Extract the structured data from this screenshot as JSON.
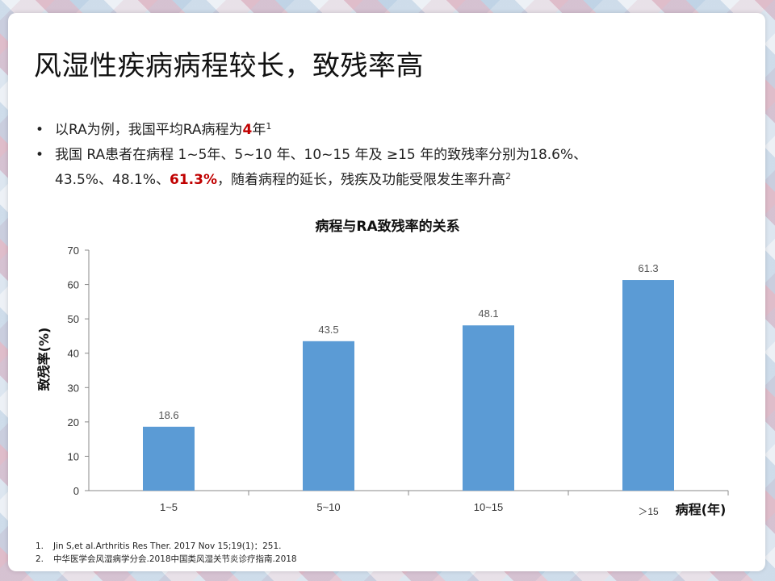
{
  "slide": {
    "title": "风湿性疾病病程较长，致残率高",
    "bullet1": {
      "pre": "以RA为例，我国平均RA病程为",
      "highlight": "4",
      "post": "年",
      "sup": "1"
    },
    "bullet2": {
      "line1": "我国 RA患者在病程 1~5年、5~10 年、10~15 年及 ≥15 年的致残率分别为18.6%、",
      "line2_pre": "43.5%、48.1%、",
      "line2_highlight": "61.3%",
      "line2_post": "，随着病程的延长，残疾及功能受限发生率升高",
      "sup": "2"
    },
    "bullet_marker": "•",
    "footnotes": [
      {
        "num": "1.",
        "text": "Jin S,et al.Arthritis Res Ther.  2017 Nov 15;19(1)：251."
      },
      {
        "num": "2.",
        "text": "中华医学会风湿病学分会.2018中国类风湿关节炎诊疗指南.2018"
      }
    ],
    "colors": {
      "highlight": "#c00000",
      "bar": "#5b9bd5"
    }
  },
  "chart_data": {
    "type": "bar",
    "title": "病程与RA致残率的关系",
    "categories": [
      "1~5",
      "5~10",
      "10~15",
      "＞15"
    ],
    "values": [
      18.6,
      43.5,
      48.1,
      61.3
    ],
    "data_labels": [
      "18.6",
      "43.5",
      "48.1",
      "61.3"
    ],
    "xlabel": "病程(年)",
    "ylabel": "致残率(%)",
    "ylim": [
      0,
      70
    ],
    "yticks": [
      "0",
      "10",
      "20",
      "30",
      "40",
      "50",
      "60",
      "70"
    ],
    "grid": false,
    "bar_color": "#5b9bd5"
  }
}
